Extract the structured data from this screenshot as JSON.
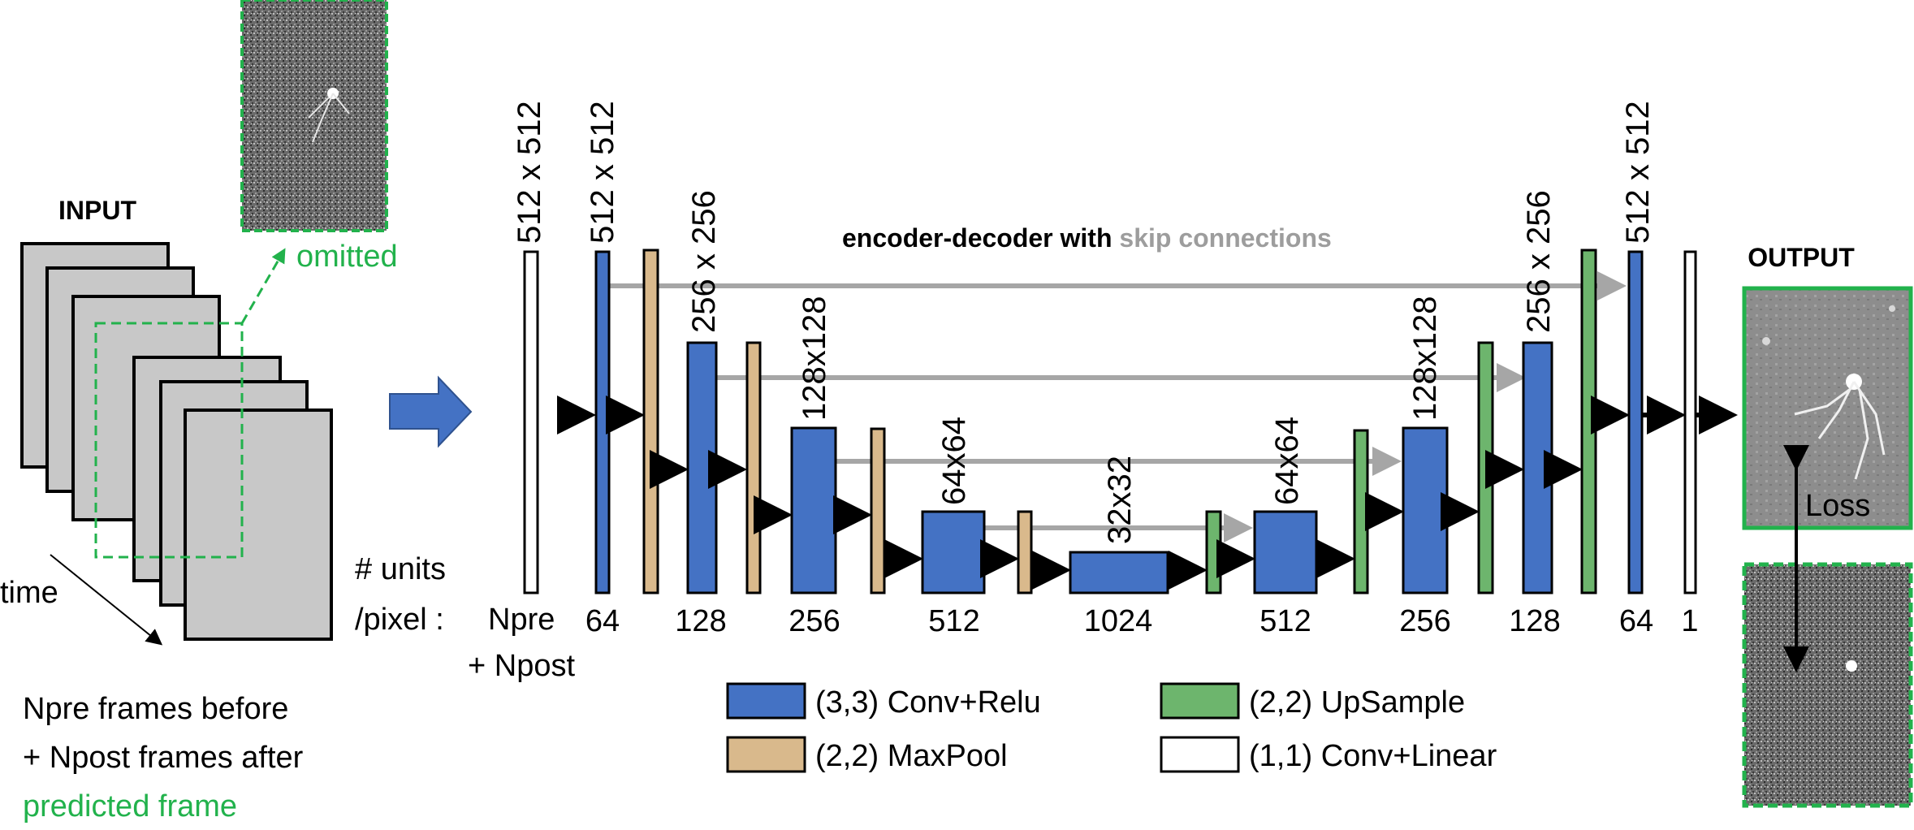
{
  "input": {
    "title": "INPUT",
    "omitted_label": "omitted",
    "time_label": "time",
    "caption_line1": "Npre frames before",
    "caption_line2": "+  Npost frames after",
    "caption_line3": "predicted frame"
  },
  "output": {
    "title": "OUTPUT",
    "loss_label": "Loss"
  },
  "heading": {
    "part1": "encoder-decoder with ",
    "part2": "skip connections"
  },
  "units_label": {
    "line1": "# units",
    "line2": "/pixel :",
    "npre": "Npre",
    "npost": "+ Npost"
  },
  "layers": {
    "units": [
      "64",
      "128",
      "256",
      "512",
      "1024",
      "512",
      "256",
      "128",
      "64",
      "1"
    ],
    "sizes": [
      "512 x 512",
      "512 x 512",
      "256 x 256",
      "128x128",
      "64x64",
      "32x32",
      "64x64",
      "128x128",
      "256 x 256",
      "512 x 512"
    ]
  },
  "legend": {
    "conv_relu": "(3,3) Conv+Relu",
    "maxpool": "(2,2) MaxPool",
    "upsample": "(2,2) UpSample",
    "conv_linear": "(1,1) Conv+Linear"
  },
  "colors": {
    "conv": "#4472c4",
    "pool": "#d9b98c",
    "upsample": "#6db56d",
    "linear": "#ffffff",
    "skip": "#a6a6a6",
    "dashed": "#22b24c",
    "frame": "#c8c8c8",
    "arrow_big": "#4472c4"
  }
}
